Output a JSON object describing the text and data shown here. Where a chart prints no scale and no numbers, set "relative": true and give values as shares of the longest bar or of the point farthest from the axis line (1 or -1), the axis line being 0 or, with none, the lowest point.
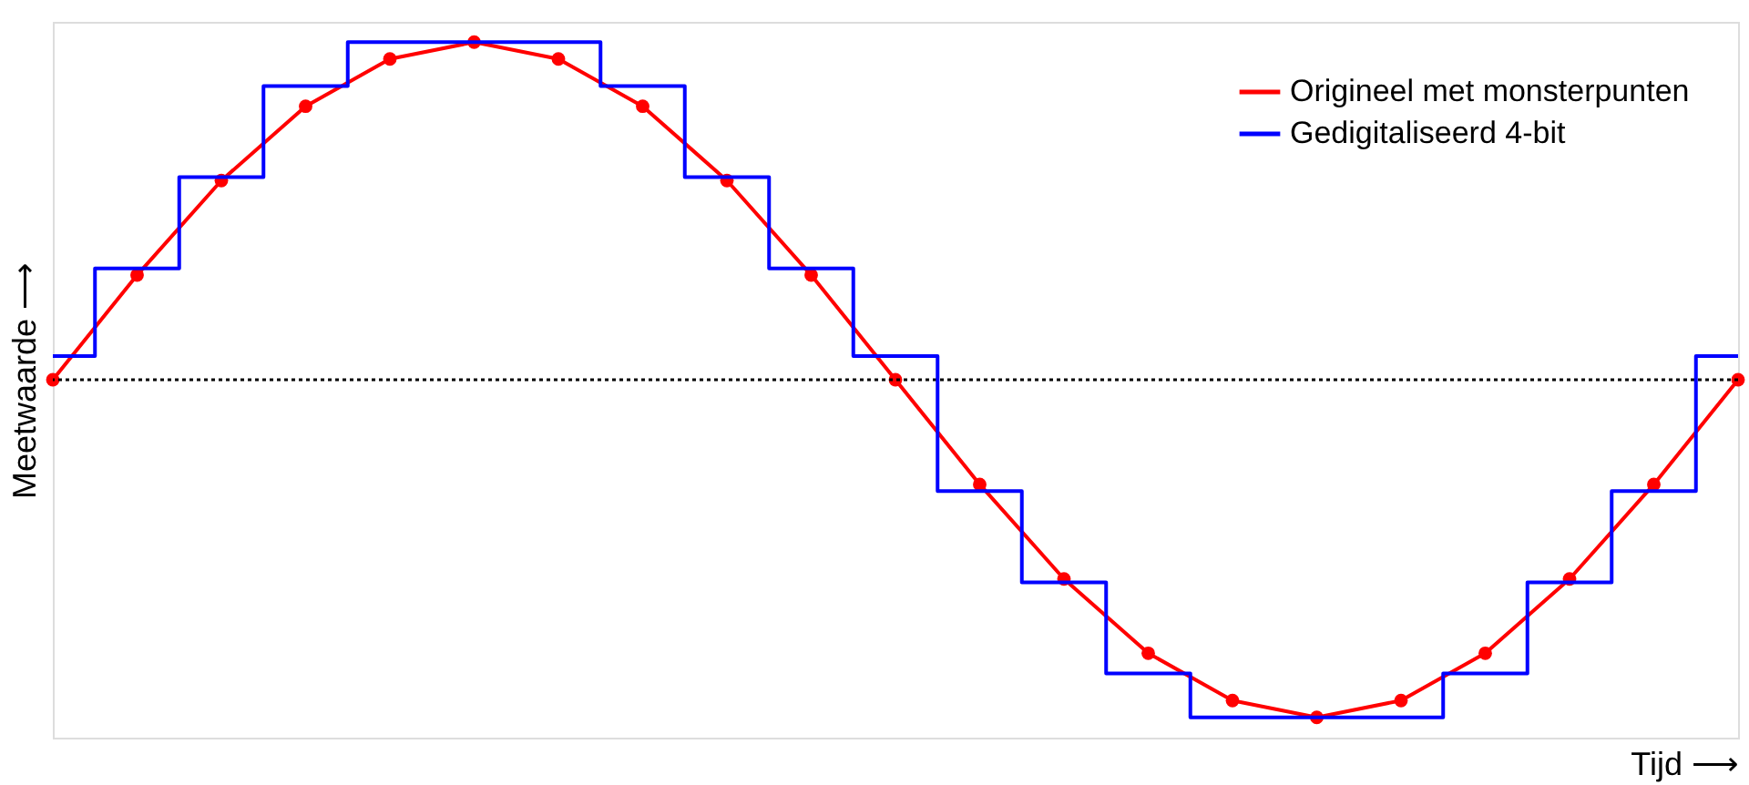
{
  "chart_data": {
    "type": "line",
    "relative": true,
    "xlabel": "Tijd ⟶",
    "ylabel": "Meetwaarde ⟶",
    "categories": [
      null,
      null,
      null,
      null,
      null,
      null,
      null,
      null,
      null,
      null,
      null,
      null,
      null,
      null,
      null,
      null,
      null,
      null,
      null,
      null,
      null
    ],
    "tick_labels": false,
    "grid": false,
    "legend": "top right",
    "series": [
      {
        "name": "Origineel met monsterpunten",
        "color": "#ff0000",
        "marker": "circle",
        "line_style": "solid",
        "values": [
          0,
          0.31,
          0.59,
          0.81,
          0.95,
          1,
          0.95,
          0.81,
          0.59,
          0.31,
          0,
          -0.31,
          -0.59,
          -0.81,
          -0.95,
          -1,
          -0.95,
          -0.81,
          -0.59,
          -0.31,
          0
        ]
      },
      {
        "name": "Gedigitaliseerd 4-bit",
        "type": "step",
        "color": "#0000ff",
        "marker": "none",
        "line_style": "solid",
        "values": [
          0.07,
          0.33,
          0.6,
          0.87,
          1,
          1,
          1,
          0.87,
          0.6,
          0.33,
          0.07,
          -0.33,
          -0.6,
          -0.87,
          -1,
          -1,
          -1,
          -0.87,
          -0.6,
          -0.33,
          0.07
        ]
      }
    ],
    "ref_lines": [
      {
        "axis": "y",
        "value": 0,
        "color": "#000000",
        "line_style": "dotted"
      }
    ]
  }
}
